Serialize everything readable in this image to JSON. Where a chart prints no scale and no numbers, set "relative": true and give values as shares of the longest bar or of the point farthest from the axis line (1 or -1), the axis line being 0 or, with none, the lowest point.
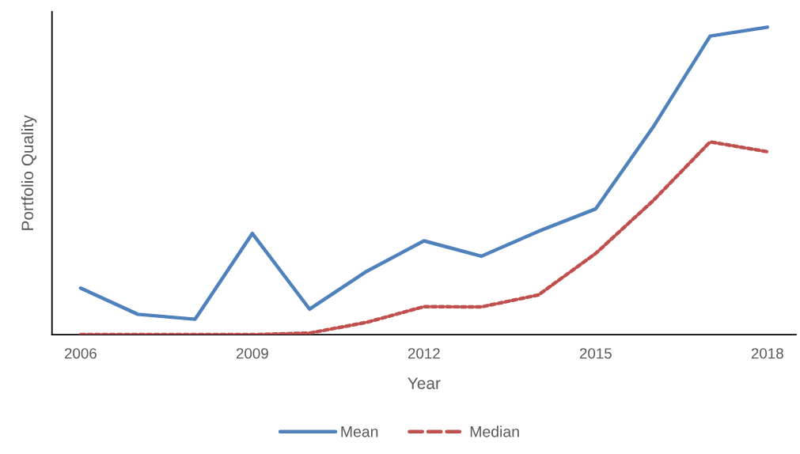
{
  "chart_data": {
    "type": "line",
    "relative": true,
    "xlabel": "Year",
    "ylabel": "Portfolio Quality",
    "categories": [
      "2006",
      null,
      null,
      "2009",
      null,
      null,
      "2012",
      null,
      null,
      "2015",
      null,
      null,
      "2018"
    ],
    "series": [
      {
        "name": "Mean",
        "color": "#4f81bd",
        "line_style": "solid",
        "values": [
          0.151,
          0.066,
          0.05,
          0.329,
          0.083,
          0.206,
          0.305,
          0.255,
          0.336,
          0.409,
          0.674,
          0.971,
          1.0
        ]
      },
      {
        "name": "Median",
        "color": "#c0504d",
        "line_style": "dashed",
        "values": [
          0.0,
          0.0,
          0.0,
          0.0,
          0.005,
          0.04,
          0.091,
          0.09,
          0.129,
          0.264,
          0.435,
          0.627,
          0.595
        ]
      }
    ],
    "legend": "bottom"
  }
}
